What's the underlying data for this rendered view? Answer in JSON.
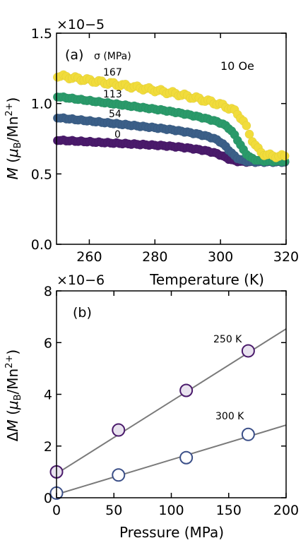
{
  "chart_data": [
    {
      "type": "scatter",
      "panel_label": "(a)",
      "legend_title": "σ (MPa)",
      "annotation": "10 Oe",
      "xlabel": "Temperature (K)",
      "ylabel": "M (μB/Mn2+)",
      "y_multiplier": "×10−5",
      "xlim": [
        250,
        320
      ],
      "ylim": [
        0.0,
        1.5
      ],
      "xticks": [
        "260",
        "280",
        "300",
        "320"
      ],
      "yticks": [
        "0.0",
        "0.5",
        "1.0",
        "1.5"
      ],
      "series": [
        {
          "name": "0",
          "color": "#4a1a6b",
          "plateau": 0.74,
          "slope": 0.0012,
          "tc": 302.0,
          "high": 0.585
        },
        {
          "name": "54",
          "color": "#3b5f88",
          "plateau": 0.9,
          "slope": 0.0024,
          "tc": 303.0,
          "high": 0.585
        },
        {
          "name": "113",
          "color": "#2a9a6a",
          "plateau": 1.05,
          "slope": 0.003,
          "tc": 306.0,
          "high": 0.59
        },
        {
          "name": "167",
          "color": "#f1dc3b",
          "plateau": 1.2,
          "slope": 0.0035,
          "tc": 309.0,
          "high": 0.625
        }
      ]
    },
    {
      "type": "scatter",
      "panel_label": "(b)",
      "xlabel": "Pressure (MPa)",
      "ylabel": "ΔM (μB/Mn2+)",
      "y_multiplier": "×10−6",
      "xlim": [
        0,
        200
      ],
      "ylim": [
        0,
        8
      ],
      "xticks": [
        "0",
        "50",
        "100",
        "150",
        "200"
      ],
      "yticks": [
        "0",
        "2",
        "4",
        "6",
        "8"
      ],
      "series": [
        {
          "name": "250 K",
          "marker_color": "#4a1a6b",
          "fill": "#e9e3ef",
          "x": [
            0,
            54,
            113,
            167
          ],
          "y": [
            1.0,
            2.62,
            4.15,
            5.68
          ],
          "fit": [
            0.93,
            0.028
          ]
        },
        {
          "name": "300 K",
          "marker_color": "#3b4f88",
          "fill": "#ffffff",
          "x": [
            0,
            54,
            113,
            167
          ],
          "y": [
            0.18,
            0.88,
            1.55,
            2.45
          ],
          "fit": [
            0.13,
            0.0134
          ]
        }
      ]
    }
  ]
}
